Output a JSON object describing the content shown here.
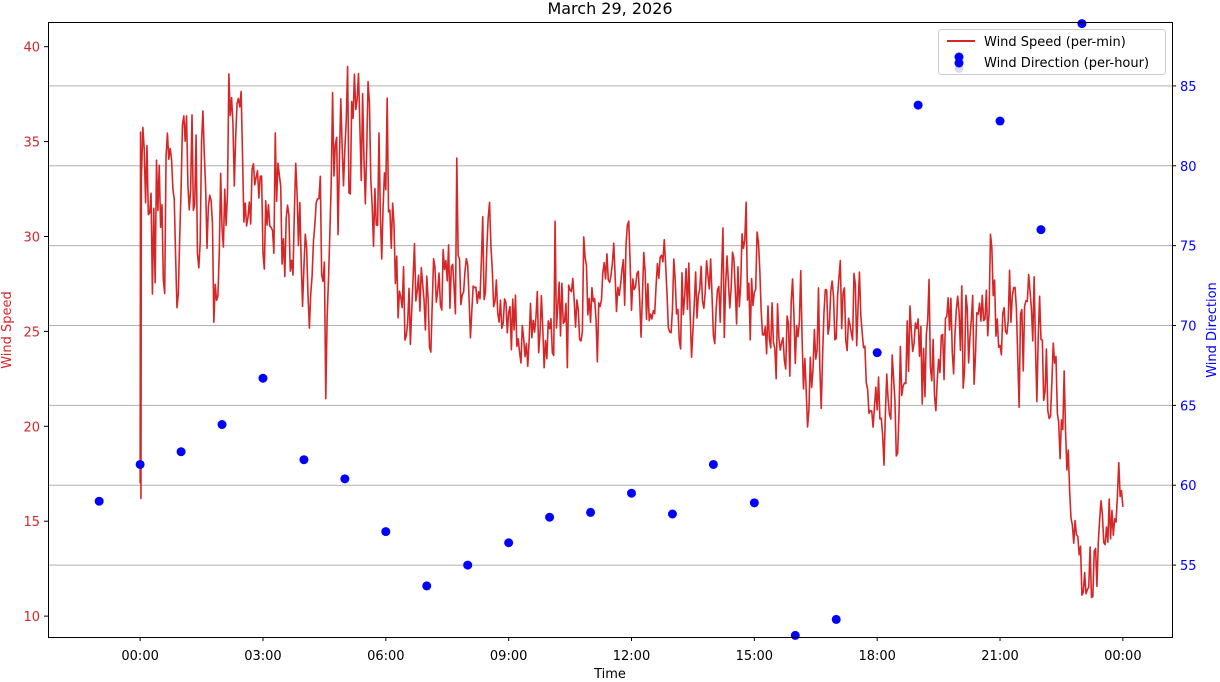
{
  "chart_data": {
    "type": "line",
    "title": "March 29, 2026",
    "xlabel": "Time",
    "ylabel_left": "Wind Speed",
    "ylabel_right": "Wind Direction",
    "x_ticks": [
      "00:00",
      "03:00",
      "06:00",
      "09:00",
      "12:00",
      "15:00",
      "18:00",
      "21:00",
      "00:00"
    ],
    "x_tick_hours": [
      0,
      3,
      6,
      9,
      12,
      15,
      18,
      21,
      24
    ],
    "xlim_hours": [
      -2.25,
      25.2
    ],
    "y_left_ticks": [
      10,
      15,
      20,
      25,
      30,
      35,
      40
    ],
    "ylim_left": [
      8.9,
      41.3
    ],
    "y_right_ticks": [
      55,
      60,
      65,
      70,
      75,
      80,
      85
    ],
    "ylim_right": [
      50.5,
      89.0
    ],
    "grid": "right-axis horizontal",
    "legend_position": "upper right",
    "colors": {
      "speed": "#d62728",
      "direction": "#0000ff",
      "right_axis": "#0000ff",
      "left_axis": "#d62728"
    },
    "series": [
      {
        "name": "Wind Speed (per-min)",
        "kind": "line",
        "axis": "left",
        "anchors": [
          [
            0,
            17.0
          ],
          [
            0.02,
            35.5
          ],
          [
            0.15,
            32.0
          ],
          [
            0.3,
            30.0
          ],
          [
            0.5,
            34.0
          ],
          [
            0.8,
            33.5
          ],
          [
            1.0,
            31.0
          ],
          [
            1.3,
            33.0
          ],
          [
            1.6,
            32.0
          ],
          [
            1.8,
            27.0
          ],
          [
            2.0,
            28.0
          ],
          [
            2.2,
            35.0
          ],
          [
            2.4,
            34.0
          ],
          [
            2.6,
            32.0
          ],
          [
            2.8,
            31.0
          ],
          [
            3.0,
            33.0
          ],
          [
            3.3,
            32.0
          ],
          [
            3.6,
            30.0
          ],
          [
            3.9,
            31.0
          ],
          [
            4.2,
            30.0
          ],
          [
            4.5,
            32.0
          ],
          [
            4.8,
            33.0
          ],
          [
            5.0,
            33.5
          ],
          [
            5.3,
            36.5
          ],
          [
            5.6,
            34.0
          ],
          [
            5.9,
            32.0
          ],
          [
            6.2,
            29.0
          ],
          [
            6.5,
            27.0
          ],
          [
            6.8,
            28.0
          ],
          [
            7.0,
            25.0
          ],
          [
            7.4,
            27.5
          ],
          [
            7.8,
            28.5
          ],
          [
            8.2,
            28.0
          ],
          [
            8.6,
            28.5
          ],
          [
            9.0,
            27.0
          ],
          [
            9.2,
            25.0
          ],
          [
            9.5,
            24.0
          ],
          [
            9.8,
            25.0
          ],
          [
            10.2,
            25.5
          ],
          [
            10.6,
            26.0
          ],
          [
            11.0,
            26.5
          ],
          [
            11.5,
            28.0
          ],
          [
            12.0,
            28.5
          ],
          [
            12.5,
            27.0
          ],
          [
            13.0,
            26.0
          ],
          [
            13.5,
            26.5
          ],
          [
            14.0,
            27.0
          ],
          [
            14.5,
            28.5
          ],
          [
            14.8,
            29.0
          ],
          [
            15.0,
            27.0
          ],
          [
            15.5,
            24.5
          ],
          [
            16.0,
            24.0
          ],
          [
            16.5,
            24.5
          ],
          [
            17.0,
            25.0
          ],
          [
            17.5,
            25.5
          ],
          [
            18.0,
            22.5
          ],
          [
            18.5,
            23.0
          ],
          [
            19.0,
            24.0
          ],
          [
            19.5,
            24.5
          ],
          [
            20.0,
            24.0
          ],
          [
            20.5,
            25.5
          ],
          [
            21.0,
            25.0
          ],
          [
            21.5,
            26.0
          ],
          [
            22.0,
            25.5
          ],
          [
            22.2,
            24.0
          ],
          [
            22.4,
            20.0
          ],
          [
            22.7,
            17.5
          ],
          [
            23.0,
            13.5
          ],
          [
            23.3,
            11.5
          ],
          [
            23.6,
            14.5
          ],
          [
            24.0,
            17.0
          ]
        ]
      },
      {
        "name": "Wind Direction (per-hour)",
        "kind": "scatter",
        "axis": "right",
        "x": [
          -1,
          0,
          1,
          2,
          3,
          4,
          5,
          6,
          7,
          8,
          9,
          10,
          11,
          12,
          13,
          14,
          15,
          16,
          17,
          18,
          19,
          20,
          21,
          22,
          23
        ],
        "y": [
          59.0,
          61.3,
          62.1,
          63.8,
          66.7,
          61.6,
          60.4,
          57.1,
          53.7,
          55.0,
          56.4,
          58.0,
          58.3,
          59.5,
          58.2,
          61.3,
          58.9,
          50.6,
          51.6,
          68.3,
          83.8,
          86.1,
          82.8,
          76.0,
          88.9
        ]
      }
    ]
  }
}
